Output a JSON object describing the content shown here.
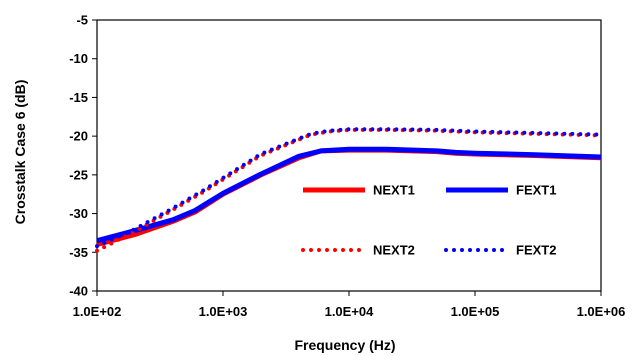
{
  "chart_data": {
    "type": "line",
    "title": "",
    "xlabel": "Frequency (Hz)",
    "ylabel": "Crosstalk Case 6 (dB)",
    "x_scale": "log",
    "xlim": [
      100,
      1000000
    ],
    "ylim": [
      -40,
      -5
    ],
    "x_tick_labels": [
      "1.0E+02",
      "1.0E+03",
      "1.0E+04",
      "1.0E+05",
      "1.0E+06"
    ],
    "y_tick_labels": [
      "-5",
      "-10",
      "-15",
      "-20",
      "-25",
      "-30",
      "-35",
      "-40"
    ],
    "grid": false,
    "legend_position": "inside lower-right",
    "series": [
      {
        "name": "NEXT1",
        "color": "#ff0000",
        "style": "solid",
        "x": [
          100,
          200,
          400,
          600,
          1000,
          2000,
          4000,
          6000,
          10000,
          20000,
          50000,
          70000,
          100000,
          300000,
          1000000
        ],
        "y": [
          -34.0,
          -32.7,
          -31.0,
          -29.8,
          -27.5,
          -25.0,
          -22.8,
          -21.9,
          -21.8,
          -21.8,
          -22.0,
          -22.2,
          -22.3,
          -22.5,
          -22.8
        ]
      },
      {
        "name": "FEXT1",
        "color": "#0000ff",
        "style": "solid",
        "x": [
          100,
          200,
          400,
          600,
          1000,
          2000,
          4000,
          6000,
          10000,
          20000,
          50000,
          70000,
          100000,
          300000,
          1000000
        ],
        "y": [
          -33.5,
          -32.2,
          -30.8,
          -29.6,
          -27.4,
          -24.9,
          -22.6,
          -21.9,
          -21.7,
          -21.7,
          -21.9,
          -22.1,
          -22.2,
          -22.4,
          -22.7
        ]
      },
      {
        "name": "NEXT2",
        "color": "#ff0000",
        "style": "dotted",
        "x": [
          100,
          200,
          400,
          700,
          1000,
          2000,
          5000,
          7000,
          10000,
          20000,
          50000,
          100000,
          300000,
          1000000
        ],
        "y": [
          -34.8,
          -32.3,
          -29.5,
          -27.2,
          -25.6,
          -22.5,
          -19.8,
          -19.4,
          -19.2,
          -19.2,
          -19.3,
          -19.5,
          -19.7,
          -19.9
        ]
      },
      {
        "name": "FEXT2",
        "color": "#0000ff",
        "style": "dotted",
        "x": [
          100,
          200,
          400,
          700,
          1000,
          2000,
          5000,
          7000,
          10000,
          20000,
          50000,
          100000,
          300000,
          1000000
        ],
        "y": [
          -34.2,
          -32.0,
          -29.3,
          -27.0,
          -25.4,
          -22.3,
          -19.7,
          -19.3,
          -19.1,
          -19.1,
          -19.2,
          -19.4,
          -19.6,
          -19.8
        ]
      }
    ]
  }
}
